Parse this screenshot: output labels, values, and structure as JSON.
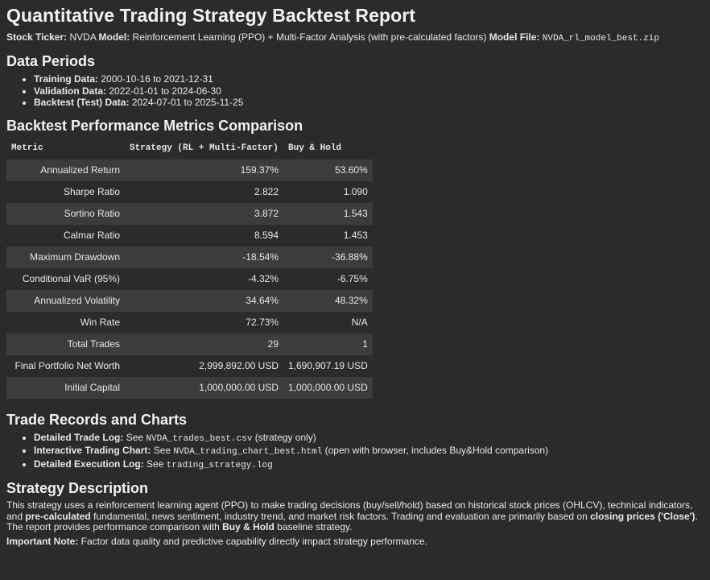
{
  "title": "Quantitative Trading Strategy Backtest Report",
  "meta": {
    "ticker_label": "Stock Ticker:",
    "ticker": "NVDA",
    "model_label": "Model:",
    "model": "Reinforcement Learning (PPO) + Multi-Factor Analysis (with pre-calculated factors)",
    "model_file_label": "Model File:",
    "model_file": "NVDA_rl_model_best.zip"
  },
  "data_periods": {
    "heading": "Data Periods",
    "items": [
      {
        "label": "Training Data:",
        "value": "2000-10-16 to 2021-12-31"
      },
      {
        "label": "Validation Data:",
        "value": "2022-01-01 to 2024-06-30"
      },
      {
        "label": "Backtest (Test) Data:",
        "value": "2024-07-01 to 2025-11-25"
      }
    ]
  },
  "metrics": {
    "heading": "Backtest Performance Metrics Comparison",
    "columns": [
      "Metric",
      "Strategy (RL + Multi-Factor)",
      "Buy & Hold"
    ],
    "rows": [
      [
        "Annualized Return",
        "159.37%",
        "53.60%"
      ],
      [
        "Sharpe Ratio",
        "2.822",
        "1.090"
      ],
      [
        "Sortino Ratio",
        "3.872",
        "1.543"
      ],
      [
        "Calmar Ratio",
        "8.594",
        "1.453"
      ],
      [
        "Maximum Drawdown",
        "-18.54%",
        "-36.88%"
      ],
      [
        "Conditional VaR (95%)",
        "-4.32%",
        "-6.75%"
      ],
      [
        "Annualized Volatility",
        "34.64%",
        "48.32%"
      ],
      [
        "Win Rate",
        "72.73%",
        "N/A"
      ],
      [
        "Total Trades",
        "29",
        "1"
      ],
      [
        "Final Portfolio Net Worth",
        "2,999,892.00 USD",
        "1,690,907.19 USD"
      ],
      [
        "Initial Capital",
        "1,000,000.00 USD",
        "1,000,000.00 USD"
      ]
    ]
  },
  "trade_records": {
    "heading": "Trade Records and Charts",
    "items": [
      {
        "label": "Detailed Trade Log:",
        "pre": "See",
        "file": "NVDA_trades_best.csv",
        "post": "(strategy only)"
      },
      {
        "label": "Interactive Trading Chart:",
        "pre": "See",
        "file": "NVDA_trading_chart_best.html",
        "post": "(open with browser, includes Buy&Hold comparison)"
      },
      {
        "label": "Detailed Execution Log:",
        "pre": "See",
        "file": "trading_strategy.log",
        "post": ""
      }
    ]
  },
  "description": {
    "heading": "Strategy Description",
    "p1_a": "This strategy uses a reinforcement learning agent (PPO) to make trading decisions (buy/sell/hold) based on historical stock prices (OHLCV), technical indicators, and",
    "p1_b": "pre-calculated",
    "p1_c": "fundamental, news sentiment, industry trend, and market risk factors. Trading and evaluation are primarily based on",
    "p1_d": "closing prices ('Close')",
    "p1_e": ". The report provides performance comparison with",
    "p1_f": "Buy & Hold",
    "p1_g": "baseline strategy.",
    "note_label": "Important Note:",
    "note_text": "Factor data quality and predictive capability directly impact strategy performance."
  }
}
